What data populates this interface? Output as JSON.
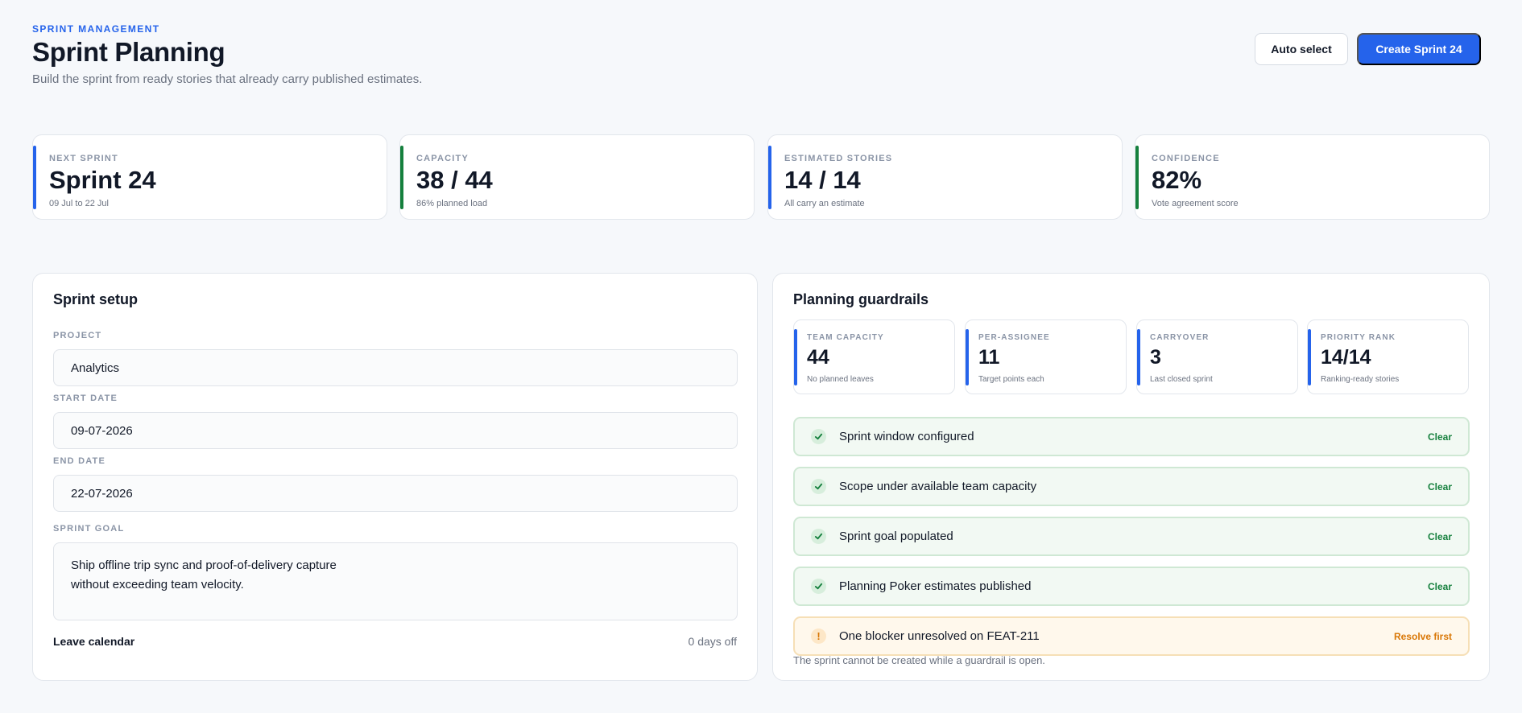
{
  "header": {
    "eyebrow": "SPRINT MANAGEMENT",
    "title": "Sprint Planning",
    "subtitle": "Build the sprint from ready stories that already carry published estimates.",
    "auto_select_label": "Auto select",
    "create_label": "Create Sprint 24"
  },
  "colors": {
    "accent": "#2563eb",
    "success": "#15803d",
    "warning": "#d97706"
  },
  "stats": [
    {
      "label": "NEXT SPRINT",
      "value": "Sprint 24",
      "sub": "09 Jul to 22 Jul",
      "color": "#2563eb"
    },
    {
      "label": "CAPACITY",
      "value": "38 / 44",
      "sub": "86% planned load",
      "color": "#15803d"
    },
    {
      "label": "ESTIMATED STORIES",
      "value": "14 / 14",
      "sub": "All carry an estimate",
      "color": "#2563eb"
    },
    {
      "label": "CONFIDENCE",
      "value": "82%",
      "sub": "Vote agreement score",
      "color": "#15803d"
    }
  ],
  "setup": {
    "title": "Sprint setup",
    "project_label": "PROJECT",
    "project_value": "Analytics",
    "start_label": "START DATE",
    "start_value": "09-07-2026",
    "end_label": "END DATE",
    "end_value": "22-07-2026",
    "goal_label": "SPRINT GOAL",
    "goal_value": "Ship offline trip sync and proof-of-delivery capture\nwithout exceeding team velocity.",
    "leave_label": "Leave calendar",
    "leave_value": "0 days off"
  },
  "guardrails": {
    "title": "Planning guardrails",
    "metrics": [
      {
        "label": "TEAM CAPACITY",
        "value": "44",
        "sub": "No planned leaves"
      },
      {
        "label": "PER-ASSIGNEE",
        "value": "11",
        "sub": "Target points each"
      },
      {
        "label": "CARRYOVER",
        "value": "3",
        "sub": "Last closed sprint"
      },
      {
        "label": "PRIORITY RANK",
        "value": "14/14",
        "sub": "Ranking-ready stories"
      }
    ],
    "checks": [
      {
        "text": "Sprint window configured",
        "status": "Clear",
        "icon": "check-icon"
      },
      {
        "text": "Scope under available team capacity",
        "status": "Clear",
        "icon": "check-icon"
      },
      {
        "text": "Sprint goal populated",
        "status": "Clear",
        "icon": "check-icon"
      },
      {
        "text": "Planning Poker estimates published",
        "status": "Clear",
        "icon": "check-icon"
      },
      {
        "text": "One blocker unresolved on FEAT-211",
        "status": "Resolve first",
        "icon": "warning-icon"
      }
    ],
    "footnote": "The sprint cannot be created while a guardrail is open."
  }
}
